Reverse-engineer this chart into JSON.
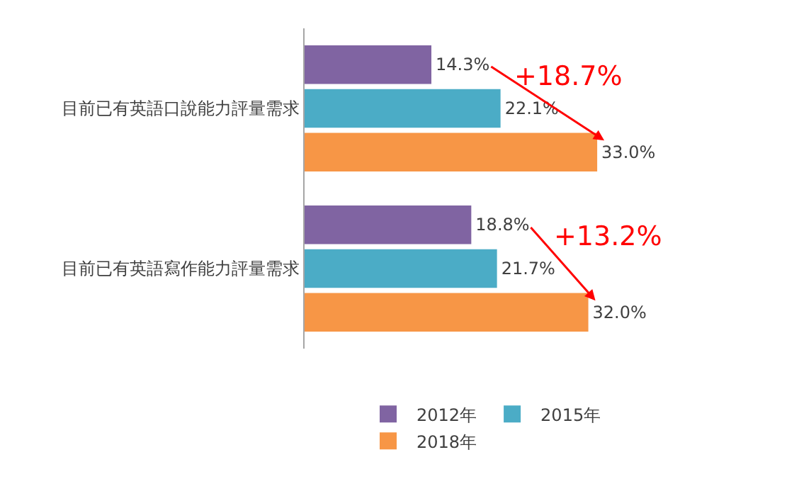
{
  "chart_data": {
    "type": "bar",
    "orientation": "horizontal",
    "categories": [
      "目前已有英語口說能力評量需求",
      "目前已有英語寫作能力評量需求"
    ],
    "series": [
      {
        "name": "2012年",
        "color": "#8064a2",
        "values": [
          14.3,
          18.8
        ],
        "value_labels": [
          "14.3%",
          "18.8%"
        ]
      },
      {
        "name": "2015年",
        "color": "#4bacc6",
        "values": [
          22.1,
          21.7
        ],
        "value_labels": [
          "22.1%",
          "21.7%"
        ]
      },
      {
        "name": "2018年",
        "color": "#f79646",
        "values": [
          33.0,
          32.0
        ],
        "value_labels": [
          "33.0%",
          "32.0%"
        ]
      }
    ],
    "tick_labels": "y",
    "legend": "bottom",
    "annotations": [
      "+18.7%",
      "+13.2%"
    ]
  }
}
